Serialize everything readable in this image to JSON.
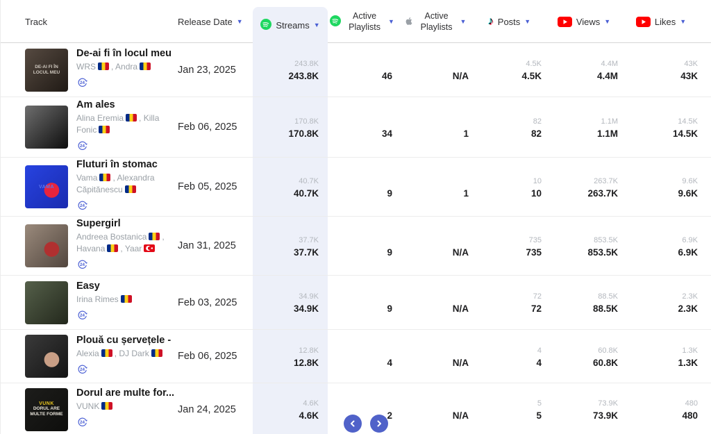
{
  "colors": {
    "accent": "#4a5fd4",
    "column_highlight": "#edf0f9",
    "spotify_green": "#1ed760",
    "youtube_red": "#ff0000",
    "pagination_blue": "#5062c9",
    "flag_ro": [
      "#012a87",
      "#fcd116",
      "#ce1126"
    ],
    "flag_tr": [
      "#e30a17",
      "#ffffff"
    ]
  },
  "icons": {
    "sort": "▼",
    "badge_24_label": "24",
    "prev": "chevron-left-icon",
    "next": "chevron-right-icon"
  },
  "table": {
    "columns": {
      "track": "Track",
      "release_date": "Release Date",
      "streams": "Streams",
      "spotify_playlists": "Active Playlists",
      "apple_playlists": "Active Playlists",
      "posts": "Posts",
      "views": "Views",
      "likes": "Likes"
    },
    "rows": [
      {
        "title": "De-ai fi în locul meu",
        "artists": [
          {
            "name": "WRS",
            "flag": "ro"
          },
          {
            "name": "Andra",
            "flag": "ro"
          }
        ],
        "release_date": "Jan 23, 2025",
        "streams": {
          "sub": "243.8K",
          "main": "243.8K"
        },
        "spotify_playlists": {
          "sub": "",
          "main": "46"
        },
        "apple_playlists": {
          "sub": "",
          "main": "N/A"
        },
        "posts": {
          "sub": "4.5K",
          "main": "4.5K"
        },
        "views": {
          "sub": "4.4M",
          "main": "4.4M"
        },
        "likes": {
          "sub": "43K",
          "main": "43K"
        },
        "art": {
          "c1": "#564a41",
          "c2": "#201a15",
          "accent": "",
          "top_label": "",
          "label": "De-ai fi în locul meu",
          "label_color": "#cfc8bf",
          "top_color": ""
        }
      },
      {
        "title": "Am ales",
        "artists": [
          {
            "name": "Alina Eremia",
            "flag": "ro"
          },
          {
            "name": "Killa Fonic",
            "flag": "ro"
          }
        ],
        "release_date": "Feb 06, 2025",
        "streams": {
          "sub": "170.8K",
          "main": "170.8K"
        },
        "spotify_playlists": {
          "sub": "",
          "main": "34"
        },
        "apple_playlists": {
          "sub": "",
          "main": "1"
        },
        "posts": {
          "sub": "82",
          "main": "82"
        },
        "views": {
          "sub": "1.1M",
          "main": "1.1M"
        },
        "likes": {
          "sub": "14.5K",
          "main": "14.5K"
        },
        "art": {
          "c1": "#6e6e6e",
          "c2": "#0d0d0d",
          "accent": "",
          "top_label": "",
          "label": "",
          "label_color": "",
          "top_color": ""
        }
      },
      {
        "title": "Fluturi în stomac",
        "artists": [
          {
            "name": "Vama",
            "flag": "ro"
          },
          {
            "name": "Alexandra Căpitănescu",
            "flag": "ro"
          }
        ],
        "release_date": "Feb 05, 2025",
        "streams": {
          "sub": "40.7K",
          "main": "40.7K"
        },
        "spotify_playlists": {
          "sub": "",
          "main": "9"
        },
        "apple_playlists": {
          "sub": "",
          "main": "1"
        },
        "posts": {
          "sub": "10",
          "main": "10"
        },
        "views": {
          "sub": "263.7K",
          "main": "263.7K"
        },
        "likes": {
          "sub": "9.6K",
          "main": "9.6K"
        },
        "art": {
          "c1": "#2743e0",
          "c2": "#1a2bb0",
          "accent": "#e8243c",
          "top_label": "VAMA",
          "label": "",
          "label_color": "",
          "top_color": "#5a74f0"
        }
      },
      {
        "title": "Supergirl",
        "artists": [
          {
            "name": "Andreea Bostanica",
            "flag": "ro"
          },
          {
            "name": "Havana",
            "flag": "ro"
          },
          {
            "name": "Yaar",
            "flag": "tr"
          }
        ],
        "release_date": "Jan 31, 2025",
        "streams": {
          "sub": "37.7K",
          "main": "37.7K"
        },
        "spotify_playlists": {
          "sub": "",
          "main": "9"
        },
        "apple_playlists": {
          "sub": "",
          "main": "N/A"
        },
        "posts": {
          "sub": "735",
          "main": "735"
        },
        "views": {
          "sub": "853.5K",
          "main": "853.5K"
        },
        "likes": {
          "sub": "6.9K",
          "main": "6.9K"
        },
        "art": {
          "c1": "#9a8a7c",
          "c2": "#52463e",
          "accent": "#b03030",
          "top_label": "",
          "label": "",
          "label_color": "",
          "top_color": ""
        }
      },
      {
        "title": "Easy",
        "artists": [
          {
            "name": "Irina Rimes",
            "flag": "ro"
          }
        ],
        "release_date": "Feb 03, 2025",
        "streams": {
          "sub": "34.9K",
          "main": "34.9K"
        },
        "spotify_playlists": {
          "sub": "",
          "main": "9"
        },
        "apple_playlists": {
          "sub": "",
          "main": "N/A"
        },
        "posts": {
          "sub": "72",
          "main": "72"
        },
        "views": {
          "sub": "88.5K",
          "main": "88.5K"
        },
        "likes": {
          "sub": "2.3K",
          "main": "2.3K"
        },
        "art": {
          "c1": "#55604a",
          "c2": "#23281c",
          "accent": "",
          "top_label": "",
          "label": "",
          "label_color": "",
          "top_color": ""
        }
      },
      {
        "title": "Plouă cu șervețele - ...",
        "artists": [
          {
            "name": "Alexia",
            "flag": "ro"
          },
          {
            "name": "DJ Dark",
            "flag": "ro"
          }
        ],
        "release_date": "Feb 06, 2025",
        "streams": {
          "sub": "12.8K",
          "main": "12.8K"
        },
        "spotify_playlists": {
          "sub": "",
          "main": "4"
        },
        "apple_playlists": {
          "sub": "",
          "main": "N/A"
        },
        "posts": {
          "sub": "4",
          "main": "4"
        },
        "views": {
          "sub": "60.8K",
          "main": "60.8K"
        },
        "likes": {
          "sub": "1.3K",
          "main": "1.3K"
        },
        "art": {
          "c1": "#3a3a3a",
          "c2": "#141414",
          "accent": "#c99f86",
          "top_label": "",
          "label": "",
          "label_color": "",
          "top_color": ""
        }
      },
      {
        "title": "Dorul are multe for...",
        "artists": [
          {
            "name": "VUNK",
            "flag": "ro"
          }
        ],
        "release_date": "Jan 24, 2025",
        "streams": {
          "sub": "4.6K",
          "main": "4.6K"
        },
        "spotify_playlists": {
          "sub": "",
          "main": "2"
        },
        "apple_playlists": {
          "sub": "",
          "main": "N/A"
        },
        "posts": {
          "sub": "5",
          "main": "5"
        },
        "views": {
          "sub": "73.9K",
          "main": "73.9K"
        },
        "likes": {
          "sub": "480",
          "main": "480"
        },
        "art": {
          "c1": "#1d1d1b",
          "c2": "#0e0e0c",
          "accent": "",
          "top_label": "VUNK",
          "label": "Dorul are multe forme",
          "label_color": "#e8e4da",
          "top_color": "#e8c520"
        }
      }
    ]
  }
}
